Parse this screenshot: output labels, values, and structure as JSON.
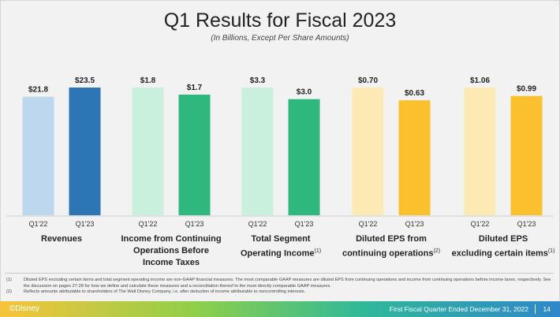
{
  "title": "Q1 Results for Fiscal 2023",
  "subtitle": "(In Billions, Except Per Share Amounts)",
  "chart_data": {
    "type": "bar",
    "categories": [
      "Q1'22",
      "Q1'23"
    ],
    "panels": [
      {
        "label_lines": [
          "Revenues"
        ],
        "footnote_ref": "",
        "values": [
          21.8,
          23.5
        ],
        "value_labels": [
          "$21.8",
          "$23.5"
        ],
        "colors": [
          "#bdd7ee",
          "#2e75b6"
        ]
      },
      {
        "label_lines": [
          "Income from Continuing",
          "Operations Before",
          "Income Taxes"
        ],
        "footnote_ref": "",
        "values": [
          1.8,
          1.7
        ],
        "value_labels": [
          "$1.8",
          "$1.7"
        ],
        "colors": [
          "#c8f0dd",
          "#2fb87e"
        ]
      },
      {
        "label_lines": [
          "Total Segment",
          "Operating Income"
        ],
        "footnote_ref": "(1)",
        "values": [
          3.3,
          3.0
        ],
        "value_labels": [
          "$3.3",
          "$3.0"
        ],
        "colors": [
          "#c8f0dd",
          "#2fb87e"
        ]
      },
      {
        "label_lines": [
          "Diluted EPS from",
          "continuing operations"
        ],
        "footnote_ref": "(2)",
        "values": [
          0.7,
          0.63
        ],
        "value_labels": [
          "$0.70",
          "$0.63"
        ],
        "colors": [
          "#fde9b3",
          "#fbc02d"
        ]
      },
      {
        "label_lines": [
          "Diluted EPS",
          "excluding certain items"
        ],
        "footnote_ref": "(1)",
        "values": [
          1.06,
          0.99
        ],
        "value_labels": [
          "$1.06",
          "$0.99"
        ],
        "colors": [
          "#fde9b3",
          "#fbc02d"
        ]
      }
    ]
  },
  "footnotes": [
    {
      "num": "(1)",
      "text": "Diluted EPS excluding certain items and total segment operating income are non-GAAP financial measures. The most comparable GAAP measures are diluted EPS from continuing operations and income from continuing operations before income taxes, respectively. See the discussion on pages 27-28 for how we define and calculate these measures and a reconciliation thereof to the most directly comparable GAAP measures."
    },
    {
      "num": "(2)",
      "text": "Reflects amounts attributable to shareholders of The Walt Disney Company, i.e. after deduction of income attributable to noncontrolling interests."
    }
  ],
  "footer": {
    "brand": "©Disney",
    "text": "First Fiscal Quarter Ended December 31, 2022",
    "page": "14"
  }
}
